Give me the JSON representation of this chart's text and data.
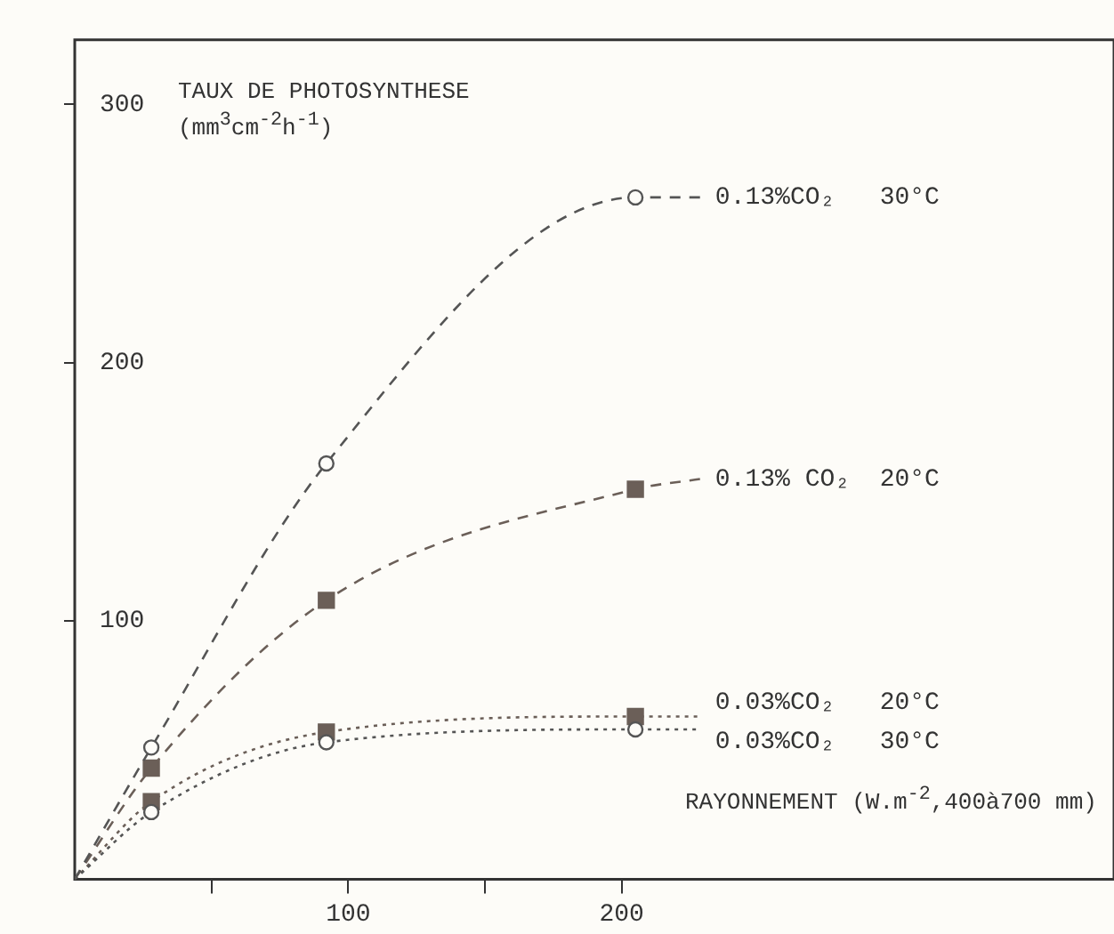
{
  "chart_data": {
    "type": "line",
    "ylabel": "TAUX DE PHOTOSYNTHESE (mm$^{3}$cm$^{-2}$h$^{-1}$)",
    "xlabel": "RAYONNEMENT (W.m$^{-2}$,400à700 mm)",
    "xlim": [
      0,
      380
    ],
    "xticks": [
      {
        "value": 50,
        "label": null
      },
      100,
      {
        "value": 150,
        "label": null
      },
      200
    ],
    "ylim": [
      0,
      325
    ],
    "yticks": [
      100,
      200,
      300
    ],
    "grid": false,
    "legend": false,
    "series": [
      {
        "name": "0.13%CO₂   30°C",
        "color": "#555555",
        "x": [
          0,
          28,
          92,
          205,
          229
        ],
        "values": [
          0,
          51,
          161,
          264,
          264
        ],
        "marker": "circle",
        "line_style": "dashed"
      },
      {
        "name": "0.13% CO₂  20°C",
        "color": "#6b5f58",
        "x": [
          0,
          28,
          92,
          205,
          229
        ],
        "values": [
          0,
          43,
          108,
          151,
          155
        ],
        "marker": "square",
        "line_style": "dashed"
      },
      {
        "name": "0.03%CO₂   20°C",
        "color": "#6b5f58",
        "x": [
          0,
          28,
          92,
          205,
          229
        ],
        "values": [
          0,
          30,
          57,
          63,
          63
        ],
        "marker": "square",
        "line_style": "dotted"
      },
      {
        "name": "0.03%CO₂   30°C",
        "color": "#555555",
        "x": [
          0,
          28,
          92,
          205,
          229
        ],
        "values": [
          0,
          26,
          53,
          58,
          58
        ],
        "marker": "circle",
        "line_style": "dotted"
      }
    ]
  }
}
